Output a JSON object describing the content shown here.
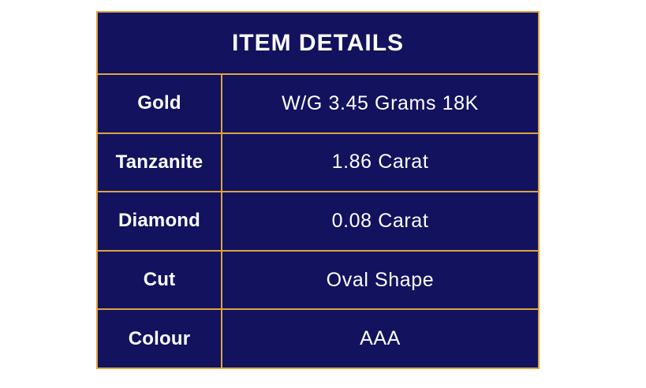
{
  "page": {
    "background_color": "#ffffff"
  },
  "table": {
    "title": "ITEM DETAILS",
    "colors": {
      "navy": "#13125e",
      "gold": "#dca440",
      "text": "#ffffff"
    },
    "rows": [
      {
        "label": "Gold",
        "value": "W/G 3.45 Grams 18K"
      },
      {
        "label": "Tanzanite",
        "value": "1.86 Carat"
      },
      {
        "label": "Diamond",
        "value": "0.08 Carat"
      },
      {
        "label": "Cut",
        "value": "Oval Shape"
      },
      {
        "label": "Colour",
        "value": "AAA"
      }
    ]
  }
}
